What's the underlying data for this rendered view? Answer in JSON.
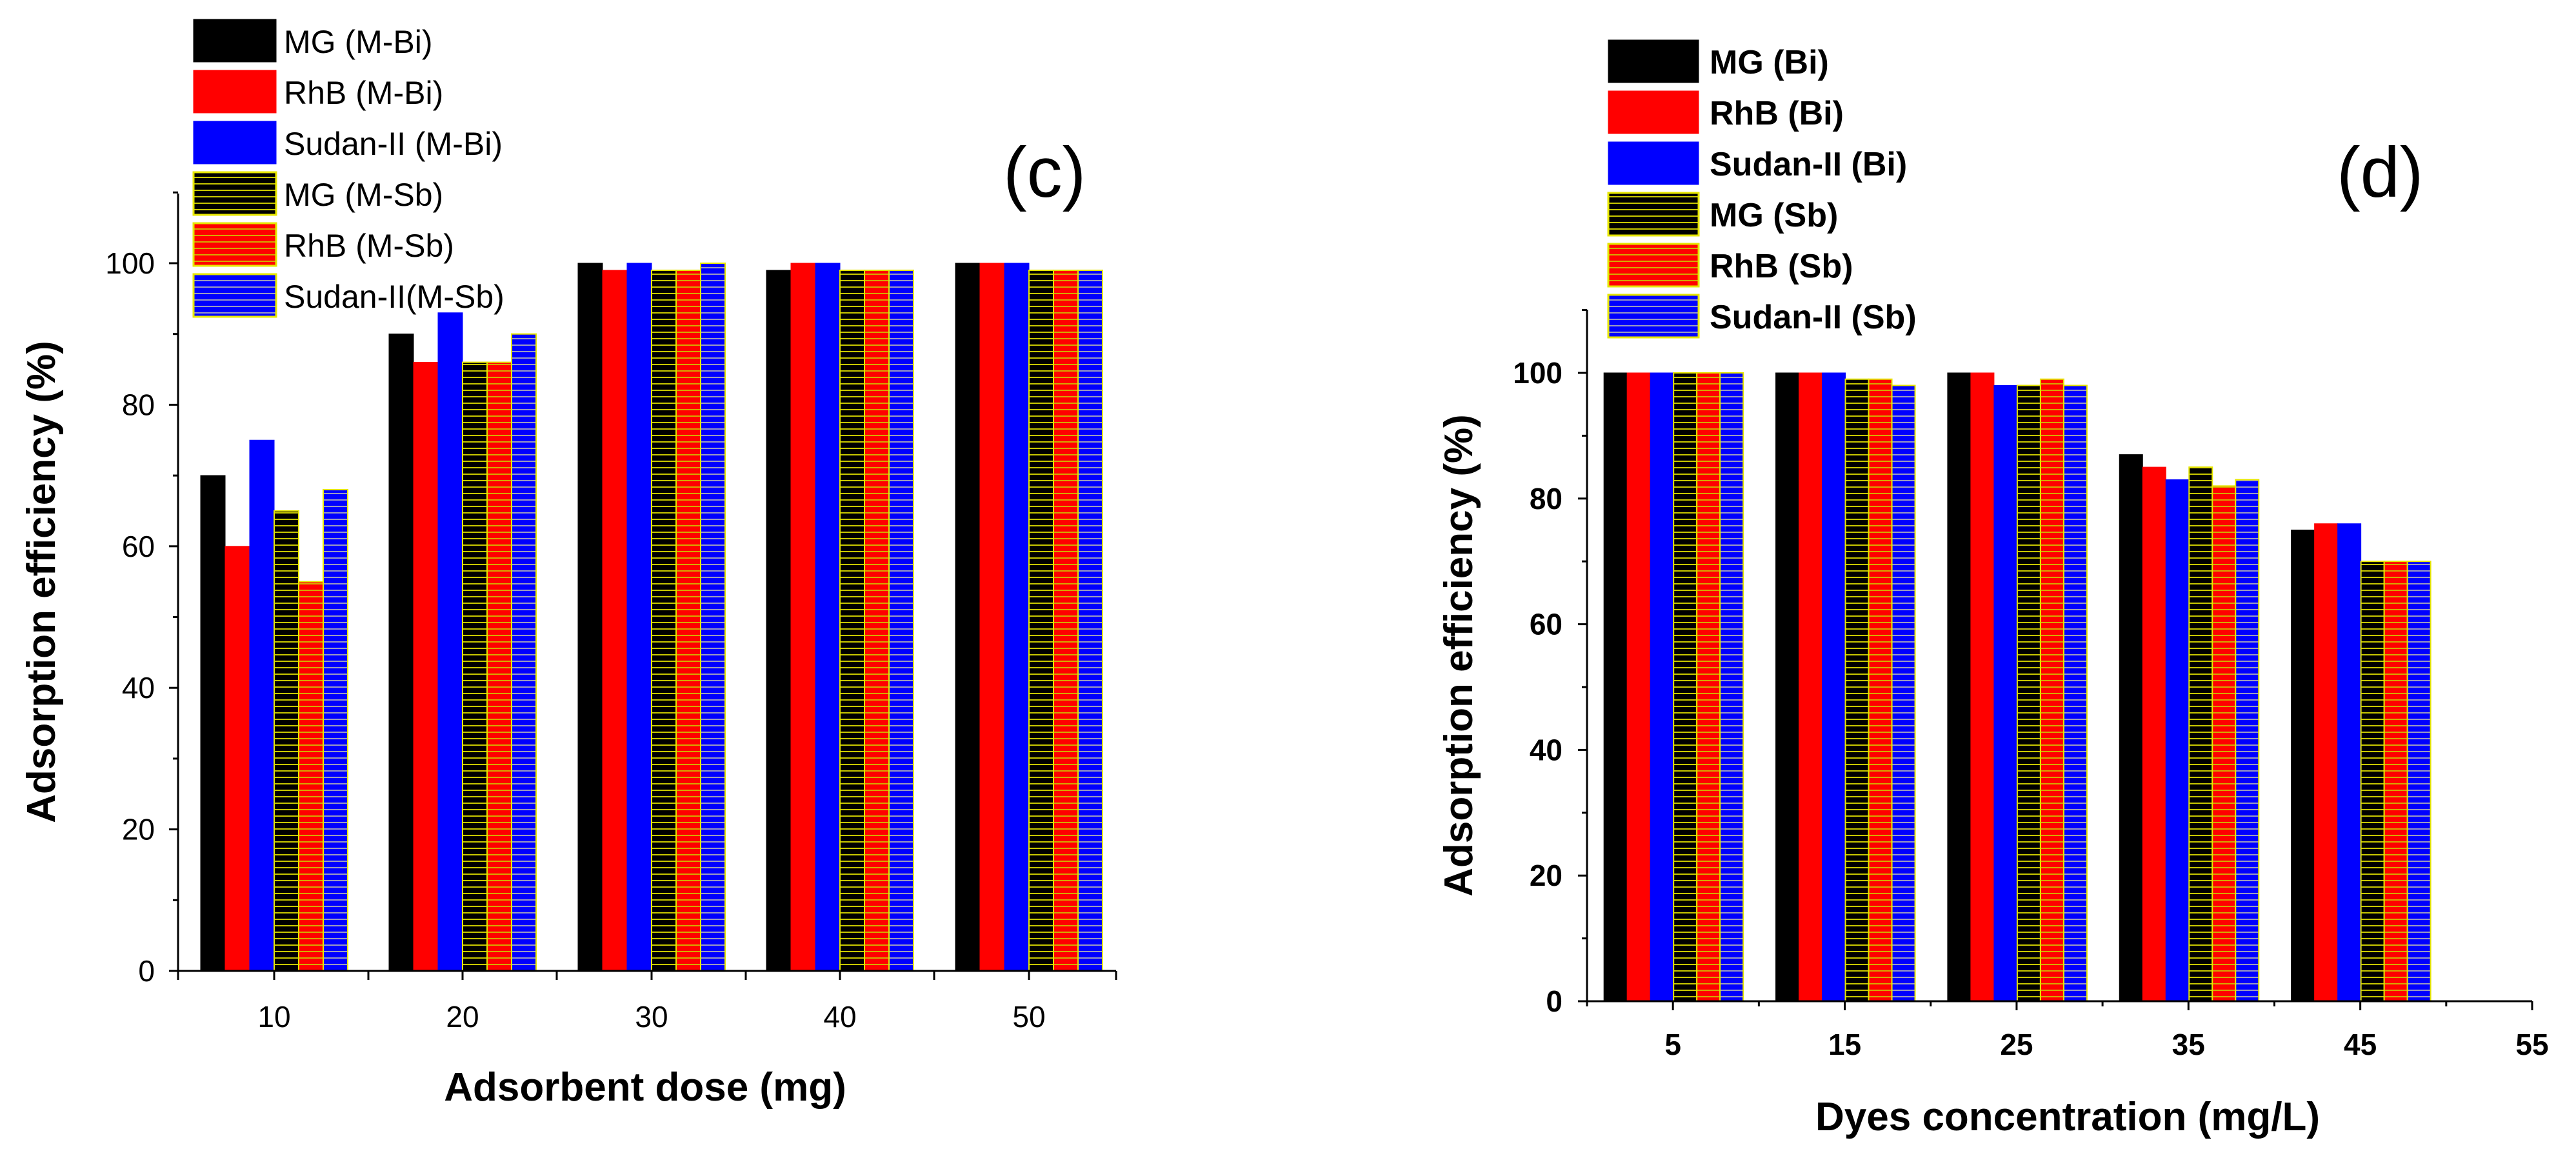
{
  "chart_data": [
    {
      "id": "c",
      "type": "bar",
      "panel_label": "(c)",
      "xlabel": "Adsorbent dose (mg)",
      "ylabel": "Adsorption efficiency (%)",
      "ylim": [
        0,
        110
      ],
      "yticks": [
        "0",
        "20",
        "40",
        "60",
        "80",
        "100"
      ],
      "categories": [
        "10",
        "20",
        "30",
        "40",
        "50"
      ],
      "legend_position": "top-left",
      "series": [
        {
          "name": "MG  (M-Bi)",
          "values": [
            70,
            90,
            100,
            99,
            100
          ],
          "color": "#000000",
          "pattern": "solid"
        },
        {
          "name": "RhB (M-Bi)",
          "values": [
            60,
            86,
            99,
            100,
            100
          ],
          "color": "#ff0000",
          "pattern": "solid"
        },
        {
          "name": "Sudan-II (M-Bi)",
          "values": [
            75,
            93,
            100,
            100,
            100
          ],
          "color": "#0000ff",
          "pattern": "solid"
        },
        {
          "name": "MG  (M-Sb)",
          "values": [
            65,
            86,
            99,
            99,
            99
          ],
          "color": "#000000",
          "pattern": "hatched"
        },
        {
          "name": "RhB (M-Sb)",
          "values": [
            55,
            86,
            99,
            99,
            99
          ],
          "color": "#ff0000",
          "pattern": "hatched"
        },
        {
          "name": "Sudan-II(M-Sb)",
          "values": [
            68,
            90,
            100,
            99,
            99
          ],
          "color": "#0000ff",
          "pattern": "hatched"
        }
      ]
    },
    {
      "id": "d",
      "type": "bar",
      "panel_label": "(d)",
      "xlabel": "Dyes concentration (mg/L)",
      "ylabel": "Adsorption efficiency (%)",
      "ylim": [
        0,
        110
      ],
      "yticks": [
        "0",
        "20",
        "40",
        "60",
        "80",
        "100"
      ],
      "xlim": [
        0,
        55
      ],
      "xticks": [
        "5",
        "15",
        "25",
        "35",
        "45",
        "55"
      ],
      "categories": [
        "5",
        "15",
        "25",
        "35",
        "45"
      ],
      "legend_position": "top-left",
      "series": [
        {
          "name": "MG (Bi)",
          "values": [
            100,
            100,
            100,
            87,
            75
          ],
          "color": "#000000",
          "pattern": "solid"
        },
        {
          "name": "RhB (Bi)",
          "values": [
            100,
            100,
            100,
            85,
            76
          ],
          "color": "#ff0000",
          "pattern": "solid"
        },
        {
          "name": "Sudan-II (Bi)",
          "values": [
            100,
            100,
            98,
            83,
            76
          ],
          "color": "#0000ff",
          "pattern": "solid"
        },
        {
          "name": "MG (Sb)",
          "values": [
            100,
            99,
            98,
            85,
            70
          ],
          "color": "#000000",
          "pattern": "hatched"
        },
        {
          "name": "RhB (Sb)",
          "values": [
            100,
            99,
            99,
            82,
            70
          ],
          "color": "#ff0000",
          "pattern": "hatched"
        },
        {
          "name": "Sudan-II (Sb)",
          "values": [
            100,
            98,
            98,
            83,
            70
          ],
          "color": "#0000ff",
          "pattern": "hatched"
        }
      ]
    }
  ]
}
